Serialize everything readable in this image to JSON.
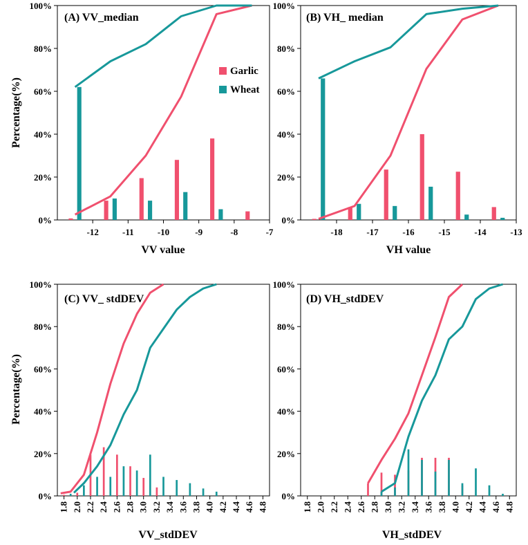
{
  "figure": {
    "colors": {
      "garlic": "#f0506e",
      "wheat": "#17989a"
    },
    "legend": {
      "garlic": "Garlic",
      "wheat": "Wheat"
    }
  },
  "chart_data": [
    {
      "id": "A",
      "type": "bar",
      "title": "(A) VV_median",
      "xlabel": "VV value",
      "ylabel": "Percentage(%)",
      "xlim": [
        -13,
        -7
      ],
      "ylim": [
        0,
        100
      ],
      "xticks": [
        -12,
        -11,
        -10,
        -9,
        -8,
        -7
      ],
      "xtick_labels": [
        "-12",
        "-11",
        "-10",
        "-9",
        "-8",
        "-7"
      ],
      "yticks": [
        0,
        20,
        40,
        60,
        80,
        100
      ],
      "ytick_labels": [
        "0%",
        "20%",
        "40%",
        "60%",
        "80%",
        "100%"
      ],
      "rotate_xticks": false,
      "legend": "top-right",
      "bar_width": 0.12,
      "bars": {
        "garlic": {
          "x": [
            -12.62,
            -11.62,
            -10.62,
            -9.62,
            -8.62,
            -7.62
          ],
          "values": [
            0.7,
            9,
            19.5,
            28,
            38,
            4
          ]
        },
        "wheat": {
          "x": [
            -12.38,
            -11.38,
            -10.38,
            -9.38,
            -8.38,
            -7.38
          ],
          "values": [
            62,
            10,
            9,
            13,
            5,
            0
          ]
        }
      },
      "lines": {
        "garlic": {
          "x": [
            -12.5,
            -11.5,
            -10.5,
            -9.5,
            -8.5,
            -7.5
          ],
          "values": [
            2.5,
            11,
            30,
            57.5,
            96,
            100
          ]
        },
        "wheat": {
          "x": [
            -12.5,
            -11.5,
            -10.5,
            -9.5,
            -8.5,
            -7.5
          ],
          "values": [
            62,
            74,
            82,
            95,
            100,
            100
          ]
        }
      }
    },
    {
      "id": "B",
      "type": "bar",
      "title": "(B) VH_ median",
      "xlabel": "VH value",
      "ylabel": "",
      "xlim": [
        -19,
        -13
      ],
      "ylim": [
        0,
        100
      ],
      "xticks": [
        -18,
        -17,
        -16,
        -15,
        -14,
        -13
      ],
      "xtick_labels": [
        "-18",
        "-17",
        "-16",
        "-15",
        "-14",
        "-13"
      ],
      "yticks": [
        0,
        20,
        40,
        60,
        80,
        100
      ],
      "ytick_labels": [
        "0%",
        "20%",
        "40%",
        "60%",
        "80%",
        "100%"
      ],
      "rotate_xticks": false,
      "legend": "none",
      "bar_width": 0.12,
      "bars": {
        "garlic": {
          "x": [
            -18.62,
            -17.62,
            -16.62,
            -15.62,
            -14.62,
            -13.62
          ],
          "values": [
            0.5,
            6,
            23.5,
            40,
            22.5,
            6
          ]
        },
        "wheat": {
          "x": [
            -18.38,
            -17.38,
            -16.38,
            -15.38,
            -14.38,
            -13.38
          ],
          "values": [
            66,
            7.5,
            6.5,
            15.5,
            2.5,
            1
          ]
        }
      },
      "lines": {
        "garlic": {
          "x": [
            -18.5,
            -17.5,
            -16.5,
            -15.5,
            -14.5,
            -13.5
          ],
          "values": [
            0.5,
            6.5,
            30,
            70.5,
            93.5,
            100
          ]
        },
        "wheat": {
          "x": [
            -18.5,
            -17.5,
            -16.5,
            -15.5,
            -14.5,
            -13.5
          ],
          "values": [
            66,
            74,
            80.5,
            96,
            98.5,
            100
          ]
        }
      }
    },
    {
      "id": "C",
      "type": "bar",
      "title": "(C) VV_ stdDEV",
      "xlabel": "VV_stdDEV",
      "ylabel": "Percentage(%)",
      "xlim": [
        1.7,
        4.9
      ],
      "ylim": [
        0,
        100
      ],
      "xticks": [
        1.8,
        2.0,
        2.2,
        2.4,
        2.6,
        2.8,
        3.0,
        3.2,
        3.4,
        3.6,
        3.8,
        4.0,
        4.2,
        4.4,
        4.6,
        4.8
      ],
      "xtick_labels": [
        "1.8",
        "2.0",
        "2.2",
        "2.4",
        "2.6",
        "2.8",
        "3.0",
        "3.2",
        "3.4",
        "3.6",
        "3.8",
        "4.0",
        "4.2",
        "4.4",
        "4.6",
        "4.8"
      ],
      "yticks": [
        0,
        20,
        40,
        60,
        80,
        100
      ],
      "ytick_labels": [
        "0%",
        "20%",
        "40%",
        "60%",
        "80%",
        "100%"
      ],
      "rotate_xticks": true,
      "legend": "none",
      "bar_width": 0.028,
      "bars": {
        "garlic": {
          "x": [
            1.8,
            2.0,
            2.2,
            2.4,
            2.6,
            2.8,
            3.0,
            3.2
          ],
          "values": [
            0.5,
            1.5,
            19.5,
            23,
            19.5,
            14,
            8.5,
            4
          ]
        },
        "wheat": {
          "x": [
            1.9,
            2.1,
            2.3,
            2.5,
            2.7,
            2.9,
            3.1,
            3.3,
            3.5,
            3.7,
            3.9,
            4.1
          ],
          "values": [
            1,
            5,
            9,
            9,
            14,
            12,
            19.5,
            9,
            7.5,
            6,
            3.5,
            2
          ]
        }
      },
      "lines": {
        "garlic": {
          "x": [
            1.75,
            1.9,
            2.1,
            2.3,
            2.5,
            2.7,
            2.9,
            3.1,
            3.3
          ],
          "values": [
            1.2,
            2,
            10,
            30,
            53,
            72,
            86,
            96,
            100
          ]
        },
        "wheat": {
          "x": [
            1.95,
            2.1,
            2.3,
            2.5,
            2.7,
            2.9,
            3.1,
            3.3,
            3.5,
            3.7,
            3.9,
            4.1
          ],
          "values": [
            1.5,
            6,
            14,
            24,
            38.5,
            50,
            70,
            79,
            88,
            94,
            98,
            100
          ]
        }
      }
    },
    {
      "id": "D",
      "type": "bar",
      "title": "(D) VH_stdDEV",
      "xlabel": "VH_stdDEV",
      "ylabel": "",
      "xlim": [
        1.7,
        4.9
      ],
      "ylim": [
        0,
        100
      ],
      "xticks": [
        1.8,
        2.0,
        2.2,
        2.4,
        2.6,
        2.8,
        3.0,
        3.2,
        3.4,
        3.6,
        3.8,
        4.0,
        4.2,
        4.4,
        4.6,
        4.8
      ],
      "xtick_labels": [
        "1.8",
        "2.0",
        "2.2",
        "2.4",
        "2.6",
        "2.8",
        "3.0",
        "3.2",
        "3.4",
        "3.6",
        "3.8",
        "4.0",
        "4.2",
        "4.4",
        "4.6",
        "4.8"
      ],
      "yticks": [
        0,
        20,
        40,
        60,
        80,
        100
      ],
      "ytick_labels": [
        "0%",
        "20%",
        "40%",
        "60%",
        "80%",
        "100%"
      ],
      "rotate_xticks": true,
      "legend": "none",
      "bar_width": 0.028,
      "bars": {
        "garlic": {
          "x": [
            2.7,
            2.9,
            3.1,
            3.3,
            3.5,
            3.7,
            3.9,
            4.1
          ],
          "values": [
            6,
            11,
            10,
            12,
            18,
            18,
            18,
            5
          ]
        },
        "wheat": {
          "x": [
            2.9,
            3.1,
            3.3,
            3.5,
            3.7,
            3.9,
            4.1,
            4.3,
            4.5,
            4.7
          ],
          "values": [
            2,
            4,
            22,
            17,
            11.5,
            17,
            6,
            13,
            5,
            1
          ]
        }
      },
      "lines": {
        "garlic": {
          "x": [
            2.7,
            2.9,
            3.1,
            3.3,
            3.5,
            3.7,
            3.9,
            4.1
          ],
          "values": [
            6,
            17,
            27,
            39,
            57,
            75,
            94,
            100
          ]
        },
        "wheat": {
          "x": [
            2.9,
            3.1,
            3.3,
            3.5,
            3.7,
            3.9,
            4.1,
            4.3,
            4.5,
            4.7
          ],
          "values": [
            2,
            6,
            28,
            45,
            57,
            74,
            80,
            93,
            98,
            100
          ]
        }
      }
    }
  ]
}
